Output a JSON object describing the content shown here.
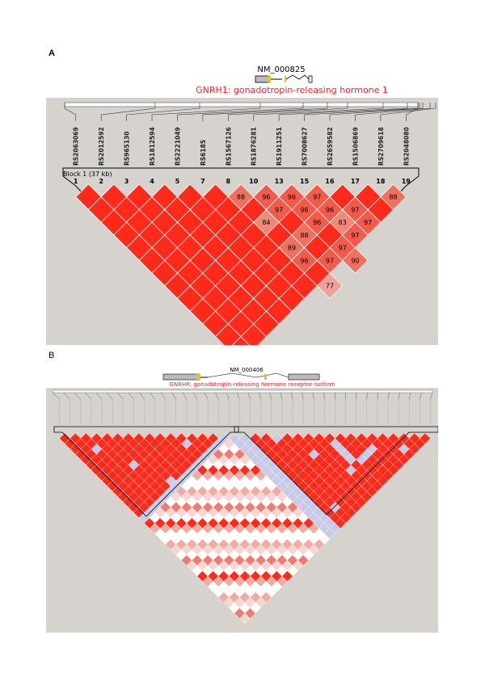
{
  "panel_a": {
    "label": "A",
    "gene_id": "NM_000825",
    "gene_name": "GNRH1: gonadotropin-releasing hormone 1",
    "block_label": "Block 1 (37 kb)",
    "snps": [
      "RS2063069",
      "RS2012592",
      "RS965130",
      "RS1812594",
      "RS2221049",
      "RS6185",
      "RS1567126",
      "RS1876281",
      "RS1911251",
      "RS7008627",
      "RS2659582",
      "RS1506869",
      "RS2709618",
      "RS2048080"
    ],
    "snp_numbers": [
      "1",
      "2",
      "3",
      "4",
      "5",
      "7",
      "8",
      "10",
      "13",
      "15",
      "16",
      "17",
      "18",
      "19"
    ],
    "cells": [
      {
        "i": 6,
        "j": 7,
        "v": "88"
      },
      {
        "i": 7,
        "j": 8,
        "v": "96"
      },
      {
        "i": 8,
        "j": 9,
        "v": "96"
      },
      {
        "i": 9,
        "j": 10,
        "v": "97"
      },
      {
        "i": 12,
        "j": 13,
        "v": "88"
      },
      {
        "i": 7,
        "j": 9,
        "v": "97"
      },
      {
        "i": 8,
        "j": 10,
        "v": "96"
      },
      {
        "i": 9,
        "j": 11,
        "v": "96"
      },
      {
        "i": 10,
        "j": 12,
        "v": "97"
      },
      {
        "i": 6,
        "j": 9,
        "v": "84"
      },
      {
        "i": 8,
        "j": 11,
        "v": "96"
      },
      {
        "i": 9,
        "j": 12,
        "v": "83"
      },
      {
        "i": 10,
        "j": 13,
        "v": "97"
      },
      {
        "i": 7,
        "j": 11,
        "v": "88"
      },
      {
        "i": 9,
        "j": 13,
        "v": "97"
      },
      {
        "i": 6,
        "j": 11,
        "v": "89"
      },
      {
        "i": 8,
        "j": 13,
        "v": "97"
      },
      {
        "i": 6,
        "j": 12,
        "v": "96"
      },
      {
        "i": 7,
        "j": 13,
        "v": "97"
      },
      {
        "i": 8,
        "j": 14,
        "v": "90"
      },
      {
        "i": 6,
        "j": 14,
        "v": "77"
      }
    ]
  },
  "panel_b": {
    "label": "B",
    "gene_id": "NM_000406",
    "gene_name": "GNRHR: gonadotropin-releasing hormone receptor isoform"
  },
  "colors": {
    "strong_ld": "#ff2a1a",
    "background": "#d6d3ce",
    "gene_title": "#ff2020"
  }
}
